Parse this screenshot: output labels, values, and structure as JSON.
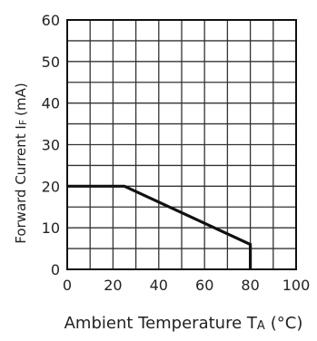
{
  "chart_data": {
    "type": "line",
    "xlabel": "Ambient Temperature T",
    "xlabel_subscript": "A",
    "xlabel_unit": "(°C)",
    "ylabel": "Forward Current I",
    "ylabel_subscript": "F",
    "ylabel_unit": "(mA)",
    "xlim": [
      0,
      100
    ],
    "ylim": [
      0,
      60
    ],
    "x_ticks": [
      0,
      20,
      40,
      60,
      80,
      100
    ],
    "y_ticks": [
      0,
      10,
      20,
      30,
      40,
      50,
      60
    ],
    "x_tick_labels": [
      "0",
      "20",
      "40",
      "60",
      "80",
      "100"
    ],
    "y_tick_labels": [
      "0",
      "10",
      "20",
      "30",
      "40",
      "50",
      "60"
    ],
    "x_grid_step": 10,
    "y_grid_step": 5,
    "grid": true,
    "series": [
      {
        "x": [
          0,
          25,
          80,
          80
        ],
        "y": [
          20,
          20,
          6,
          0
        ]
      }
    ],
    "colors": {
      "line": "#111111",
      "grid": "#333333",
      "frame": "#111111"
    }
  }
}
